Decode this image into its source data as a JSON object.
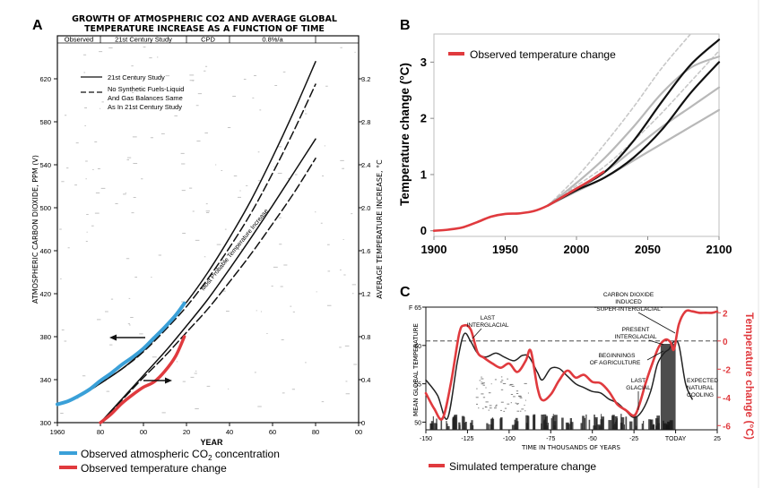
{
  "colors": {
    "observed_co2": "#3aa0d8",
    "observed_temp": "#e03a3e",
    "projection_black": "#111111",
    "model_gray": "#b8b8b8",
    "model_dashed": "#c8c8c8",
    "glacial_line": "#222222"
  },
  "panelA": {
    "letter": "A",
    "title_line1": "GROWTH OF ATMOSPHERIC CO2 AND AVERAGE GLOBAL",
    "title_line2": "TEMPERATURE INCREASE AS A FUNCTION OF TIME",
    "periods": [
      "Observed",
      "21st Century Study",
      "CPD",
      "0.8%/a"
    ],
    "legend_solid": "21st Century Study",
    "legend_dashed_1": "No Synthetic Fuels-Liquid",
    "legend_dashed_2": "And Gas Balances Same",
    "legend_dashed_3": "As In 21st Century Study",
    "left_ylabel": "ATMOSPHERIC CARBON DIOXIDE, PPM (V)",
    "right_ylabel": "AVERAGE TEMPERATURE INCREASE, °C",
    "xlabel": "YEAR",
    "curve_label": "Most Probable Temperature Increase",
    "legend_co2": "Observed atmospheric CO",
    "legend_co2_sub": "2",
    "legend_co2_tail": " concentration",
    "legend_temp": "Observed temperature change"
  },
  "panelB": {
    "letter": "B",
    "legend": "Observed temperature change",
    "ylabel": "Temperature change (°C)"
  },
  "panelC": {
    "letter": "C",
    "left_ylabel": "MEAN GLOBAL TEMPERATURE",
    "right_ylabel": "Temperature change (°C)",
    "xlabel": "TIME IN THOUSANDS OF YEARS",
    "ann_last_interglacial": [
      "LAST",
      "INTERGLACIAL"
    ],
    "ann_co2": [
      "CARBON DIOXIDE",
      "INDUCED",
      "\"SUPER-INTERGLACIAL\""
    ],
    "ann_present": [
      "PRESENT",
      "INTERGLACIAL"
    ],
    "ann_agriculture": [
      "BEGINNINGS",
      "OF AGRICULTURE"
    ],
    "ann_last_glacial": [
      "LAST",
      "GLACIAL"
    ],
    "ann_cooling": [
      "EXPECTED",
      "NATURAL",
      "COOLING"
    ],
    "legend": "Simulated temperature change"
  },
  "chart_data": [
    {
      "type": "line",
      "title": "GROWTH OF ATMOSPHERIC CO2 AND AVERAGE GLOBAL TEMPERATURE INCREASE AS A FUNCTION OF TIME",
      "xlabel": "YEAR",
      "ylabel": "ATMOSPHERIC CARBON DIOXIDE, PPM (V)",
      "y2label": "AVERAGE TEMPERATURE INCREASE, °C",
      "xlim": [
        1960,
        2100
      ],
      "ylim": [
        300,
        640
      ],
      "y2lim": [
        0,
        3.4
      ],
      "x_ticks": [
        1960,
        1980,
        2000,
        2020,
        2040,
        2060,
        2080,
        2100
      ],
      "x_tick_labels": [
        "1960",
        "80",
        "00",
        "20",
        "40",
        "60",
        "80",
        "00"
      ],
      "y_ticks": [
        300,
        340,
        380,
        420,
        460,
        500,
        540,
        580,
        620
      ],
      "y2_ticks": [
        0,
        0.4,
        0.8,
        1.2,
        1.6,
        2.0,
        2.4,
        2.8,
        3.2
      ],
      "y2_tick_labels": [
        "0",
        "0.4",
        "0.8",
        "1.2",
        "1.6",
        "2.0",
        "2.4",
        "2.8",
        "3.2"
      ],
      "series": [
        {
          "name": "CO2 21st Century Study (solid)",
          "axis": "left",
          "x": [
            1975,
            1990,
            2000,
            2010,
            2020,
            2030,
            2040,
            2050,
            2060,
            2070,
            2080
          ],
          "y": [
            330,
            350,
            367,
            388,
            412,
            440,
            472,
            507,
            547,
            590,
            636
          ]
        },
        {
          "name": "CO2 No Synthetic Fuels (dashed)",
          "axis": "left",
          "x": [
            1975,
            1990,
            2000,
            2010,
            2020,
            2030,
            2040,
            2050,
            2060,
            2070,
            2080
          ],
          "y": [
            330,
            350,
            366,
            386,
            408,
            434,
            463,
            495,
            532,
            572,
            615
          ]
        },
        {
          "name": "Most Probable Temperature Increase (solid)",
          "axis": "right",
          "x": [
            1980,
            1990,
            2000,
            2010,
            2020,
            2030,
            2040,
            2050,
            2060,
            2070,
            2080
          ],
          "y": [
            0,
            0.22,
            0.44,
            0.66,
            0.9,
            1.15,
            1.43,
            1.72,
            2.02,
            2.33,
            2.64
          ]
        },
        {
          "name": "Temperature No Synthetic Fuels (dashed)",
          "axis": "right",
          "x": [
            1980,
            1990,
            2000,
            2010,
            2020,
            2030,
            2040,
            2050,
            2060,
            2070,
            2080
          ],
          "y": [
            0,
            0.21,
            0.42,
            0.62,
            0.84,
            1.06,
            1.31,
            1.57,
            1.85,
            2.14,
            2.46
          ]
        },
        {
          "name": "Observed atmospheric CO2 concentration",
          "axis": "left",
          "x": [
            1960,
            1965,
            1970,
            1975,
            1980,
            1985,
            1990,
            1995,
            2000,
            2005,
            2010,
            2015,
            2019
          ],
          "y": [
            317,
            320,
            325,
            331,
            339,
            346,
            354,
            361,
            369,
            379,
            389,
            400,
            411
          ]
        },
        {
          "name": "Observed temperature change",
          "axis": "right",
          "x": [
            1980,
            1985,
            1990,
            1995,
            2000,
            2005,
            2010,
            2015,
            2019
          ],
          "y": [
            0,
            0.08,
            0.18,
            0.26,
            0.33,
            0.38,
            0.48,
            0.62,
            0.8
          ]
        }
      ]
    },
    {
      "type": "line",
      "xlabel": "",
      "ylabel": "Temperature change (°C)",
      "xlim": [
        1900,
        2100
      ],
      "ylim": [
        -0.1,
        3.5
      ],
      "x_ticks": [
        1900,
        1950,
        2000,
        2050,
        2100
      ],
      "y_ticks": [
        0,
        1,
        2,
        3
      ],
      "series": [
        {
          "name": "Observed temperature change",
          "x": [
            1900,
            1910,
            1920,
            1930,
            1940,
            1950,
            1960,
            1970,
            1980,
            1990,
            2000,
            2010,
            2019
          ],
          "y": [
            0,
            0.02,
            0.06,
            0.15,
            0.25,
            0.3,
            0.31,
            0.35,
            0.45,
            0.6,
            0.75,
            0.9,
            1.05
          ]
        },
        {
          "name": "Model projection 1 (black)",
          "x": [
            1980,
            2000,
            2020,
            2040,
            2060,
            2080,
            2100
          ],
          "y": [
            0.45,
            0.75,
            1.05,
            1.6,
            2.3,
            2.95,
            3.4
          ]
        },
        {
          "name": "Model projection 2 (black)",
          "x": [
            1980,
            2000,
            2020,
            2040,
            2060,
            2080,
            2100
          ],
          "y": [
            0.45,
            0.72,
            0.95,
            1.3,
            1.8,
            2.45,
            3.0
          ]
        },
        {
          "name": "Model projection 3 (gray)",
          "x": [
            1980,
            2000,
            2020,
            2040,
            2060,
            2080,
            2100
          ],
          "y": [
            0.45,
            0.85,
            1.3,
            1.85,
            2.45,
            2.9,
            3.1
          ]
        },
        {
          "name": "Model projection 4 (gray)",
          "x": [
            1980,
            2000,
            2020,
            2040,
            2060,
            2080,
            2100
          ],
          "y": [
            0.45,
            0.75,
            1.05,
            1.45,
            1.85,
            2.2,
            2.55
          ]
        },
        {
          "name": "Model projection 5 (gray)",
          "x": [
            1980,
            2000,
            2020,
            2040,
            2060,
            2080,
            2100
          ],
          "y": [
            0.45,
            0.7,
            0.95,
            1.25,
            1.55,
            1.85,
            2.15
          ]
        },
        {
          "name": "Model projection 6 (dashed gray)",
          "x": [
            1980,
            2000,
            2020,
            2040,
            2060,
            2080
          ],
          "y": [
            0.45,
            0.95,
            1.55,
            2.2,
            2.9,
            3.5
          ]
        },
        {
          "name": "Model projection 7 (dashed gray)",
          "x": [
            1980,
            2000,
            2020,
            2040,
            2060,
            2080,
            2100
          ],
          "y": [
            0.45,
            0.8,
            1.15,
            1.6,
            2.1,
            2.65,
            3.2
          ]
        }
      ]
    },
    {
      "type": "line",
      "xlabel": "TIME IN THOUSANDS OF YEARS",
      "ylabel": "MEAN GLOBAL TEMPERATURE",
      "y2label": "Temperature change (°C)",
      "xlim": [
        -150,
        25
      ],
      "ylim": [
        49,
        65
      ],
      "y2lim": [
        -6.3,
        2.4
      ],
      "x_ticks": [
        -150,
        -125,
        -100,
        -75,
        -50,
        -25,
        0,
        25
      ],
      "x_tick_labels": [
        "-150",
        "-125",
        "-100",
        "-75",
        "-50",
        "-25",
        "TODAY",
        "25"
      ],
      "y_ticks": [
        50,
        55,
        60,
        65
      ],
      "y_tick_labels": [
        "50",
        "55",
        "60",
        "F 65"
      ],
      "y2_ticks": [
        2,
        0,
        -2,
        -4,
        -6
      ],
      "y2_tick_labels": [
        "2",
        "0",
        "-2",
        "-4",
        "-6"
      ],
      "reference_line": {
        "axis": "right",
        "y": 0
      },
      "series": [
        {
          "name": "Mean global temperature (black)",
          "axis": "left",
          "x": [
            -150,
            -143,
            -137,
            -131,
            -127,
            -123,
            -119,
            -114,
            -108,
            -103,
            -97,
            -92,
            -88,
            -83,
            -80,
            -75,
            -70,
            -65,
            -60,
            -55,
            -50,
            -45,
            -40,
            -35,
            -30,
            -25,
            -20,
            -15,
            -11,
            -7,
            -4,
            -1,
            2,
            6,
            10
          ],
          "y": [
            55.5,
            53.5,
            50.5,
            58,
            61.5,
            60.5,
            59,
            58.5,
            59,
            58.5,
            58,
            58.7,
            58.5,
            56.5,
            55.5,
            57,
            57,
            56,
            55,
            54.5,
            54,
            53.8,
            53,
            52.5,
            51.5,
            50.6,
            51.5,
            54,
            57.5,
            59,
            59.5,
            60.5,
            60,
            55,
            53
          ]
        },
        {
          "name": "Simulated temperature change (red)",
          "axis": "right",
          "x": [
            -150,
            -145,
            -140,
            -135,
            -130,
            -127,
            -123,
            -119,
            -115,
            -110,
            -105,
            -100,
            -95,
            -90,
            -87,
            -83,
            -80,
            -75,
            -70,
            -65,
            -60,
            -55,
            -50,
            -45,
            -40,
            -35,
            -30,
            -25,
            -22,
            -18,
            -14,
            -10,
            -6,
            -3,
            -1,
            2,
            6,
            10,
            14,
            18,
            22,
            25
          ],
          "y": [
            -3.7,
            -4.8,
            -5.5,
            -3,
            0.5,
            1.1,
            0.8,
            -0.8,
            -1.2,
            -1.6,
            -1.9,
            -1.6,
            -2.2,
            -1.4,
            -0.7,
            -3.3,
            -4.2,
            -3.8,
            -2.8,
            -2.1,
            -2.6,
            -2.4,
            -2.9,
            -3.0,
            -3.6,
            -4.5,
            -4.9,
            -5.3,
            -4.6,
            -3.0,
            -1.6,
            -0.4,
            0.1,
            -0.1,
            -0.6,
            1.2,
            2.1,
            2.1,
            2.0,
            2.0,
            2.0,
            2.1
          ]
        }
      ]
    }
  ]
}
